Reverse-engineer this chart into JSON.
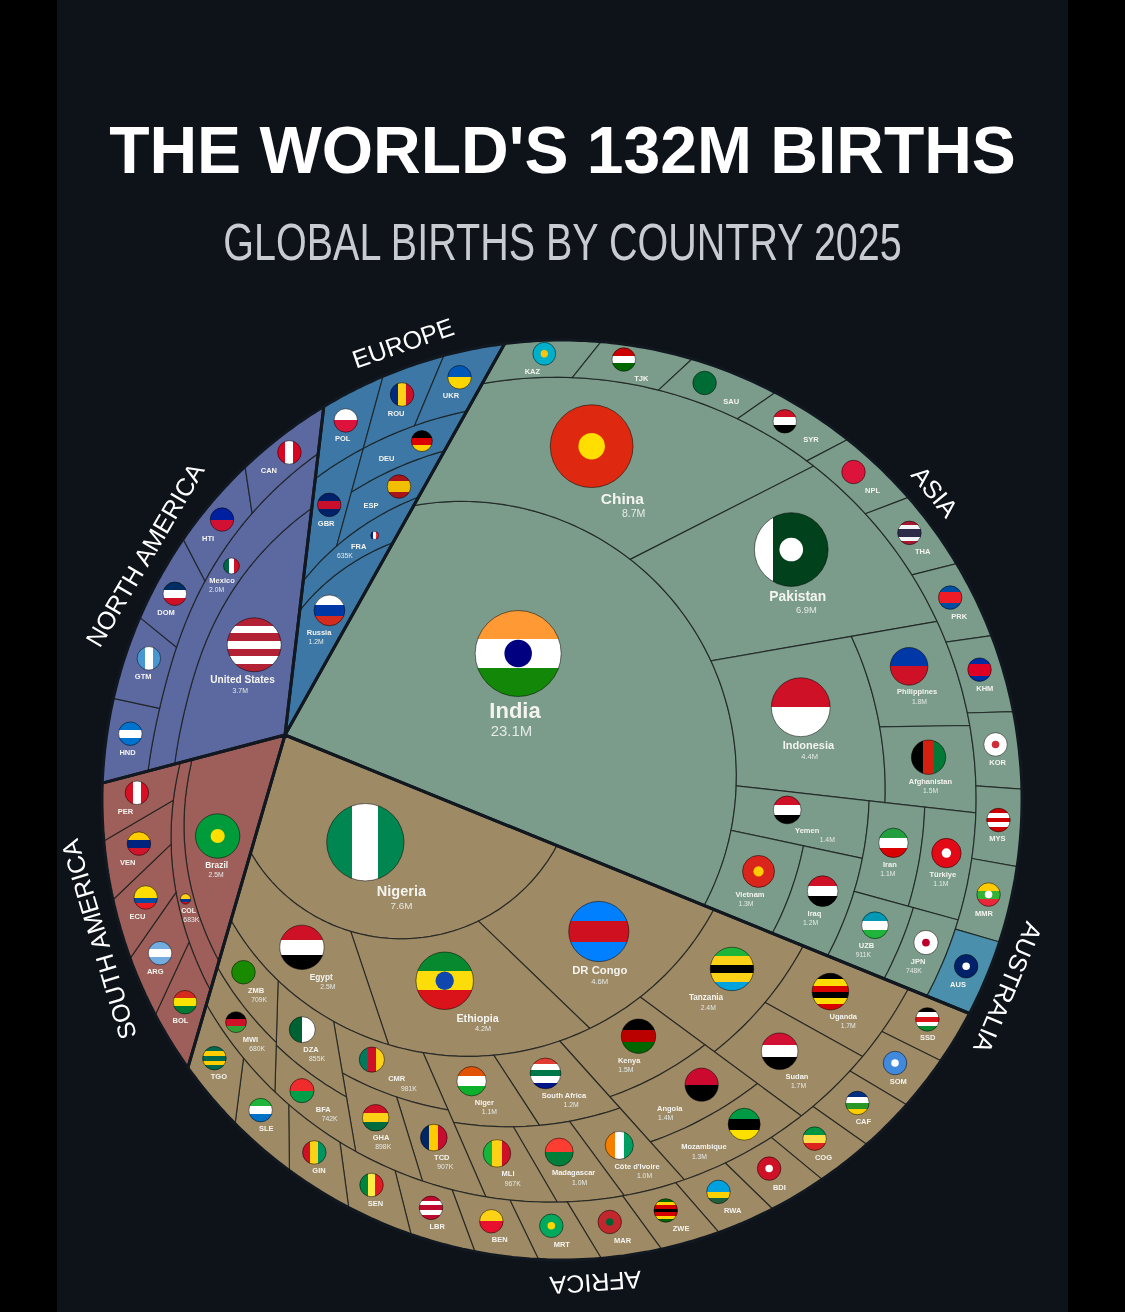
{
  "chart_data": {
    "type": "other",
    "title": "THE WORLD'S 132M BIRTHS",
    "subtitle": "GLOBAL BIRTHS BY COUNTRY 2025",
    "annotations": [
      "ASIA",
      "AUSTRALIA",
      "AFRICA",
      "SOUTH AMERICA",
      "NORTH AMERICA",
      "EUROPE"
    ],
    "categories": [
      "India",
      "China",
      "Pakistan",
      "Indonesia",
      "Philippines",
      "Afghanistan",
      "Yemen",
      "Vietnam",
      "Iraq",
      "Iran",
      "Türkiye",
      "UZB",
      "JPN",
      "KAZ",
      "TJK",
      "SAU",
      "SYR",
      "NPL",
      "THA",
      "PRK",
      "KHM",
      "KOR",
      "MYS",
      "MMR",
      "AUS",
      "Nigeria",
      "DR Congo",
      "Ethiopia",
      "Egypt",
      "Tanzania",
      "Uganda",
      "Sudan",
      "Kenya",
      "Angola",
      "Mozambique",
      "South Africa",
      "Niger",
      "Côte d'Ivoire",
      "Madagascar",
      "MLI",
      "CMR",
      "TCD",
      "GHA",
      "DZA",
      "BFA",
      "ZMB",
      "MWI",
      "SSD",
      "SOM",
      "CAF",
      "COG",
      "BDI",
      "RWA",
      "ZWE",
      "MAR",
      "MRT",
      "BEN",
      "LBR",
      "SEN",
      "GIN",
      "SLE",
      "TGO",
      "Brazil",
      "COL",
      "BOL",
      "ARG",
      "ECU",
      "VEN",
      "PER",
      "United States",
      "Mexico",
      "HND",
      "GTM",
      "DOM",
      "HTI",
      "CAN",
      "Russia",
      "FRA",
      "GBR",
      "ESP",
      "DEU",
      "POL",
      "ROU",
      "UKR"
    ],
    "values": [
      23100000,
      8700000,
      6900000,
      4400000,
      1800000,
      1500000,
      1400000,
      1300000,
      1200000,
      1100000,
      1100000,
      911000,
      748000,
      null,
      null,
      null,
      null,
      null,
      null,
      null,
      null,
      null,
      null,
      null,
      null,
      7600000,
      4600000,
      4200000,
      2500000,
      2400000,
      1700000,
      1700000,
      1500000,
      1400000,
      1300000,
      1200000,
      1100000,
      1000000,
      1000000,
      967000,
      981000,
      907000,
      898000,
      855000,
      742000,
      709000,
      680000,
      null,
      null,
      null,
      null,
      null,
      null,
      null,
      null,
      null,
      null,
      null,
      null,
      null,
      null,
      null,
      2500000,
      683000,
      null,
      null,
      null,
      null,
      null,
      3700000,
      2000000,
      null,
      null,
      null,
      null,
      null,
      1200000,
      635000,
      null,
      null,
      null,
      null,
      null,
      null
    ],
    "value_labels": [
      "23.1M",
      "8.7M",
      "6.9M",
      "4.4M",
      "1.8M",
      "1.5M",
      "1.4M",
      "1.3M",
      "1.2M",
      "1.1M",
      "1.1M",
      "911K",
      "748K",
      null,
      null,
      null,
      null,
      null,
      null,
      null,
      null,
      null,
      null,
      null,
      null,
      "7.6M",
      "4.6M",
      "4.2M",
      "2.5M",
      "2.4M",
      "1.7M",
      "1.7M",
      "1.5M",
      "1.4M",
      "1.3M",
      "1.2M",
      "1.1M",
      "1.0M",
      "1.0M",
      "967K",
      "981K",
      "907K",
      "898K",
      "855K",
      "742K",
      "709K",
      "680K",
      null,
      null,
      null,
      null,
      null,
      null,
      null,
      null,
      null,
      null,
      null,
      null,
      null,
      null,
      null,
      "2.5M",
      "683K",
      null,
      null,
      null,
      null,
      null,
      "3.7M",
      "2.0M",
      null,
      null,
      null,
      null,
      null,
      "1.2M",
      "635K",
      null,
      null,
      null,
      null,
      null,
      null
    ],
    "colors": [
      "#7b9c8a",
      "#7b9c8a",
      "#7b9c8a",
      "#7b9c8a",
      "#7b9c8a",
      "#7b9c8a",
      "#7b9c8a",
      "#7b9c8a",
      "#7b9c8a",
      "#7b9c8a",
      "#7b9c8a",
      "#7b9c8a",
      "#7b9c8a",
      "#7b9c8a",
      "#7b9c8a",
      "#7b9c8a",
      "#7b9c8a",
      "#7b9c8a",
      "#7b9c8a",
      "#7b9c8a",
      "#7b9c8a",
      "#7b9c8a",
      "#7b9c8a",
      "#7b9c8a",
      "#4a8fab",
      "#9f8a66",
      "#9f8a66",
      "#9f8a66",
      "#9f8a66",
      "#9f8a66",
      "#9f8a66",
      "#9f8a66",
      "#9f8a66",
      "#9f8a66",
      "#9f8a66",
      "#9f8a66",
      "#9f8a66",
      "#9f8a66",
      "#9f8a66",
      "#9f8a66",
      "#9f8a66",
      "#9f8a66",
      "#9f8a66",
      "#9f8a66",
      "#9f8a66",
      "#9f8a66",
      "#9f8a66",
      "#9f8a66",
      "#9f8a66",
      "#9f8a66",
      "#9f8a66",
      "#9f8a66",
      "#9f8a66",
      "#9f8a66",
      "#9f8a66",
      "#9f8a66",
      "#9f8a66",
      "#9f8a66",
      "#9f8a66",
      "#9f8a66",
      "#9f8a66",
      "#9f8a66",
      "#9e5f5a",
      "#9e5f5a",
      "#9e5f5a",
      "#9e5f5a",
      "#9e5f5a",
      "#9e5f5a",
      "#9e5f5a",
      "#5c69a0",
      "#5c69a0",
      "#5c69a0",
      "#5c69a0",
      "#5c69a0",
      "#5c69a0",
      "#5c69a0",
      "#3c77a5",
      "#3c77a5",
      "#3c77a5",
      "#3c77a5",
      "#3c77a5",
      "#3c77a5",
      "#3c77a5",
      "#3c77a5"
    ]
  }
}
